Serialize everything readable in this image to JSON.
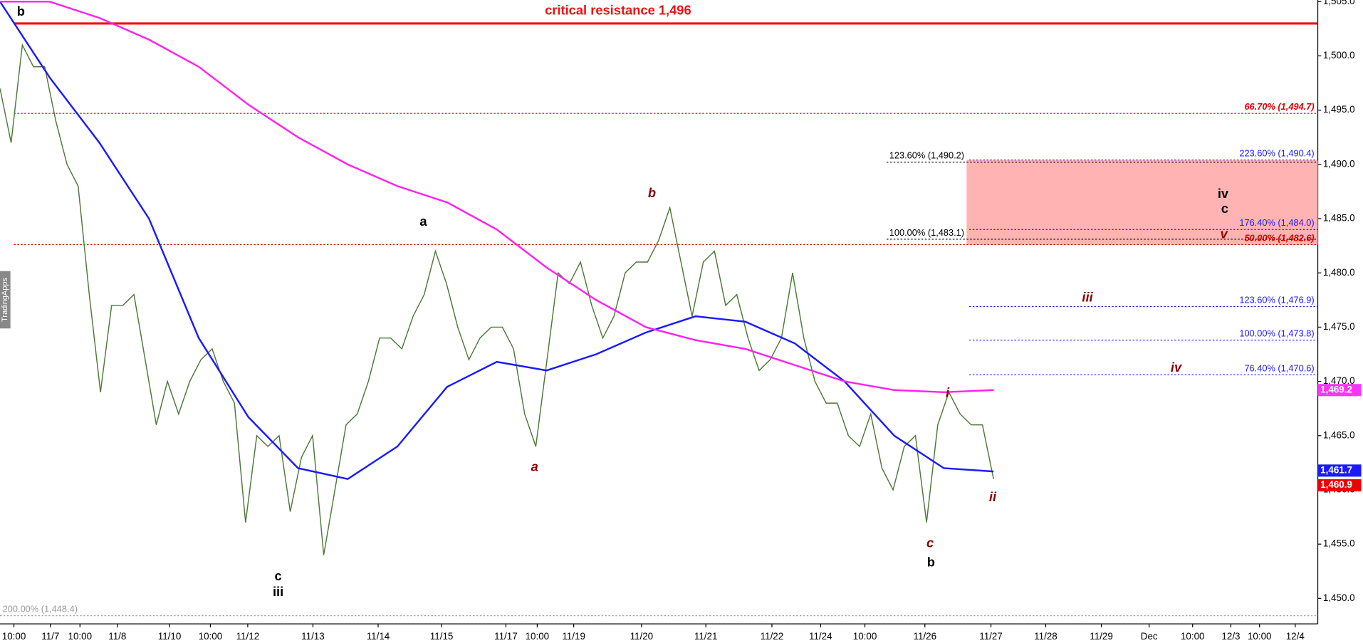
{
  "chart_data": {
    "type": "line",
    "annotation": "critical resistance 1,496",
    "watermark": "TradingApps",
    "ylim": [
      1447.65,
      1505.15
    ],
    "yticks": [
      {
        "value": 1450,
        "label": "1,450.0"
      },
      {
        "value": 1455,
        "label": "1,455.0"
      },
      {
        "value": 1460,
        "label": "1,460.0"
      },
      {
        "value": 1465,
        "label": "1,465.0"
      },
      {
        "value": 1470,
        "label": "1,470.0"
      },
      {
        "value": 1475,
        "label": "1,475.0"
      },
      {
        "value": 1480,
        "label": "1,480.0"
      },
      {
        "value": 1485,
        "label": "1,485.0"
      },
      {
        "value": 1490,
        "label": "1,490.0"
      },
      {
        "value": 1495,
        "label": "1,495.0"
      },
      {
        "value": 1500,
        "label": "1,500.0"
      },
      {
        "value": 1505,
        "label": "1,505.0"
      }
    ],
    "x_labels": [
      "10:00",
      "11/7",
      "10:00",
      "11/8",
      "11/10",
      "10:00",
      "11/12",
      "11/13",
      "11/14",
      "11/15",
      "11/17",
      "10:00",
      "11/19",
      "11/20",
      "11/21",
      "11/22",
      "11/24",
      "10:00",
      "11/26",
      "11/27",
      "11/28",
      "11/29",
      "Dec",
      "10:00",
      "12/3",
      "10:00",
      "12/4"
    ],
    "series": [
      {
        "color": "#4f7a3a",
        "values": [
          1497,
          1492,
          1501,
          1499,
          1499,
          1494,
          1490,
          1488,
          1478,
          1469,
          1477,
          1477,
          1478,
          1472,
          1466,
          1470,
          1467,
          1470,
          1472,
          1473,
          1470,
          1468,
          1457,
          1465,
          1464,
          1465,
          1458,
          1463,
          1465,
          1454,
          1460,
          1466,
          1467,
          1470,
          1474,
          1474,
          1473,
          1476,
          1478,
          1482,
          1479,
          1475,
          1472,
          1474,
          1475,
          1475,
          1473,
          1467,
          1464,
          1472,
          1480,
          1479,
          1481,
          1477,
          1474,
          1476,
          1480,
          1481,
          1481,
          1483,
          1486,
          1481,
          1476,
          1481,
          1482,
          1477,
          1478,
          1474,
          1471,
          1472,
          1474,
          1480,
          1474,
          1470,
          1468,
          1468,
          1465,
          1464,
          1467,
          1462,
          1460,
          1464,
          1465,
          1457,
          1466,
          1469,
          1467,
          1466,
          1466,
          1461
        ]
      },
      {
        "color": "#1a1aff",
        "values": [
          1505,
          1498,
          1492,
          1485,
          1474,
          1466.7,
          1462,
          1461,
          1464,
          1469.5,
          1471.8,
          1471,
          1472.5,
          1474.5,
          1476,
          1475.5,
          1473.5,
          1470,
          1465,
          1462,
          1461.7
        ]
      },
      {
        "color": "#ff22ee",
        "values": [
          1505,
          1505,
          1503.5,
          1501.5,
          1499,
          1495.5,
          1492.5,
          1490,
          1488,
          1486.5,
          1484,
          1480.5,
          1477.5,
          1475,
          1473.8,
          1473,
          1471.5,
          1470,
          1469.2,
          1469,
          1469.2
        ]
      }
    ],
    "zone": [
      1482.6,
      1490.4
    ],
    "levels": [
      {
        "label": "66.70% (1,494.7)",
        "value": 1494.7,
        "color": "#e00000"
      },
      {
        "label": "50.00% (1,482.6)",
        "value": 1482.6,
        "color": "#e00000"
      },
      {
        "label": "223.60% (1,490.4)",
        "value": 1490.4,
        "color": "#1a1aff"
      },
      {
        "label": "176.40% (1,484.0)",
        "value": 1484.0,
        "color": "#1a1aff"
      },
      {
        "label": "123.60% (1,476.9)",
        "value": 1476.9,
        "color": "#1a1aff"
      },
      {
        "label": "100.00% (1,473.8)",
        "value": 1473.8,
        "color": "#1a1aff"
      },
      {
        "label": "76.40% (1,470.6)",
        "value": 1470.6,
        "color": "#1a1aff"
      },
      {
        "label": "123.60% (1,490.2)",
        "value": 1490.2,
        "color": "#000000"
      },
      {
        "label": "100.00% (1,483.1)",
        "value": 1483.1,
        "color": "#000000"
      },
      {
        "label": "200.00% (1,448.4)",
        "value": 1448.4,
        "color": "#999999"
      }
    ],
    "price_tags": [
      {
        "label": "1,469.2",
        "value": 1469.2,
        "color": "#ff33ff"
      },
      {
        "label": "1,461.7",
        "value": 1461.7,
        "color": "#1a1aff"
      },
      {
        "label": "1,460.9",
        "value": 1460.9,
        "color": "#ee0000"
      }
    ],
    "wave_labels": [
      "b",
      "a",
      "c",
      "iii",
      "a",
      "b",
      "c",
      "b",
      "i",
      "ii",
      "iii",
      "iv",
      "iv",
      "c",
      "v"
    ]
  }
}
